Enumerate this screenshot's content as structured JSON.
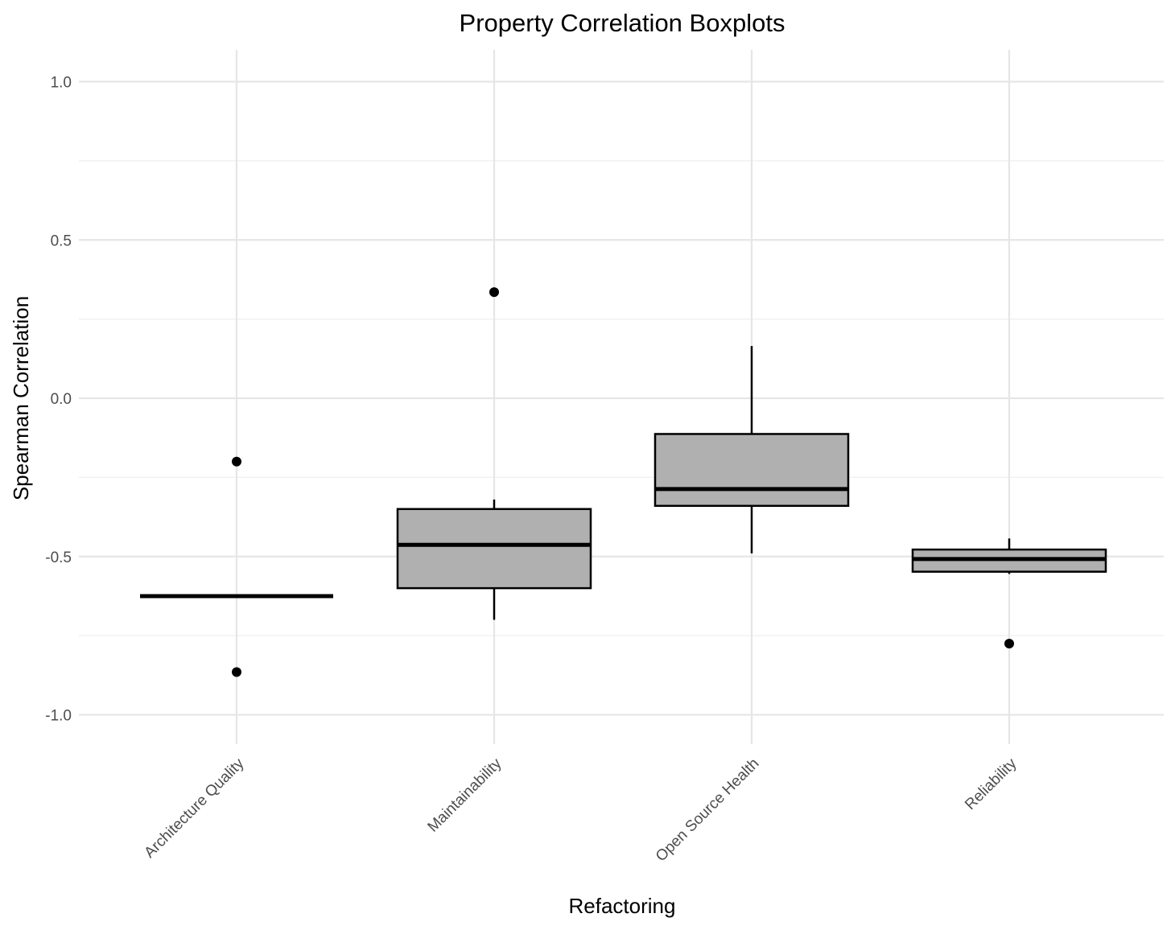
{
  "chart_data": {
    "type": "boxplot",
    "title": "Property Correlation Boxplots",
    "xlabel": "Refactoring",
    "ylabel": "Spearman Correlation",
    "ylim": [
      -1.1,
      1.1
    ],
    "yticks": [
      -1.0,
      -0.5,
      0.0,
      0.5,
      1.0
    ],
    "ytick_labels": [
      "-1.0",
      "-0.5",
      "0.0",
      "0.5",
      "1.0"
    ],
    "grid": true,
    "legend": "none",
    "box_fill": "#b0b0b0",
    "categories": [
      "Architecture Quality",
      "Maintainability",
      "Open Source Health",
      "Reliability"
    ],
    "boxes": [
      {
        "category": "Architecture Quality",
        "whisker_low": -0.625,
        "q1": -0.625,
        "median": -0.625,
        "q3": -0.625,
        "whisker_high": -0.625,
        "outliers": [
          -0.2,
          -0.865
        ]
      },
      {
        "category": "Maintainability",
        "whisker_low": -0.7,
        "q1": -0.6,
        "median": -0.463,
        "q3": -0.35,
        "whisker_high": -0.32,
        "outliers": [
          0.335
        ]
      },
      {
        "category": "Open Source Health",
        "whisker_low": -0.49,
        "q1": -0.34,
        "median": -0.287,
        "q3": -0.113,
        "whisker_high": 0.165,
        "outliers": []
      },
      {
        "category": "Reliability",
        "whisker_low": -0.555,
        "q1": -0.548,
        "median": -0.508,
        "q3": -0.478,
        "whisker_high": -0.443,
        "outliers": [
          -0.775
        ]
      }
    ]
  }
}
